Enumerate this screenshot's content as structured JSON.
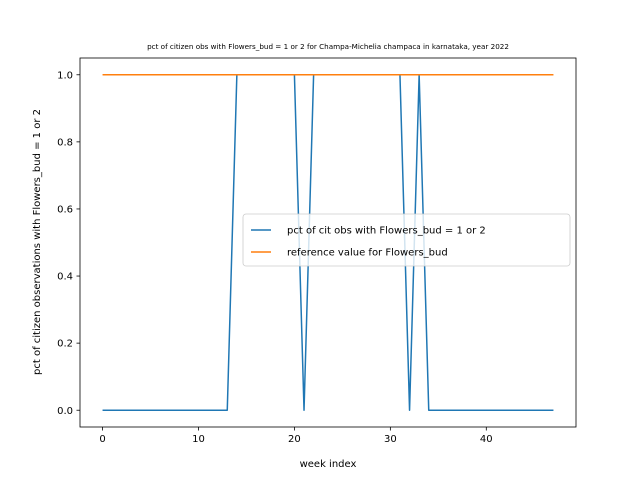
{
  "chart_data": {
    "type": "line",
    "title": "pct of citizen obs with Flowers_bud = 1 or 2 for Champa-Michelia champaca in karnataka, year 2022",
    "xlabel": "week index",
    "ylabel": "pct of citizen observations with Flowers_bud = 1 or 2",
    "xlim": [
      -2.35,
      49.35
    ],
    "ylim": [
      -0.05,
      1.05
    ],
    "xticks": [
      0,
      10,
      20,
      30,
      40
    ],
    "xtick_labels": [
      "0",
      "10",
      "20",
      "30",
      "40"
    ],
    "yticks": [
      0.0,
      0.2,
      0.4,
      0.6,
      0.8,
      1.0
    ],
    "ytick_labels": [
      "0.0",
      "0.2",
      "0.4",
      "0.6",
      "0.8",
      "1.0"
    ],
    "grid": false,
    "legend_position": "center-right",
    "series": [
      {
        "name": "pct of cit obs with Flowers_bud = 1 or 2",
        "color": "#1f77b4",
        "x": [
          0,
          1,
          2,
          3,
          4,
          5,
          6,
          7,
          8,
          9,
          10,
          11,
          12,
          13,
          14,
          15,
          16,
          17,
          18,
          19,
          20,
          21,
          22,
          23,
          24,
          25,
          26,
          27,
          28,
          29,
          30,
          31,
          32,
          33,
          34,
          35,
          36,
          37,
          38,
          39,
          40,
          41,
          42,
          43,
          44,
          45,
          46,
          47
        ],
        "y": [
          0,
          0,
          0,
          0,
          0,
          0,
          0,
          0,
          0,
          0,
          0,
          0,
          0,
          0,
          1,
          1,
          1,
          1,
          1,
          1,
          1,
          0,
          1,
          1,
          1,
          1,
          1,
          1,
          1,
          1,
          1,
          1,
          0,
          1,
          0,
          0,
          0,
          0,
          0,
          0,
          0,
          0,
          0,
          0,
          0,
          0,
          0,
          0
        ]
      },
      {
        "name": "reference value for Flowers_bud",
        "color": "#ff7f0e",
        "x": [
          0,
          47
        ],
        "y": [
          1,
          1
        ]
      }
    ]
  }
}
